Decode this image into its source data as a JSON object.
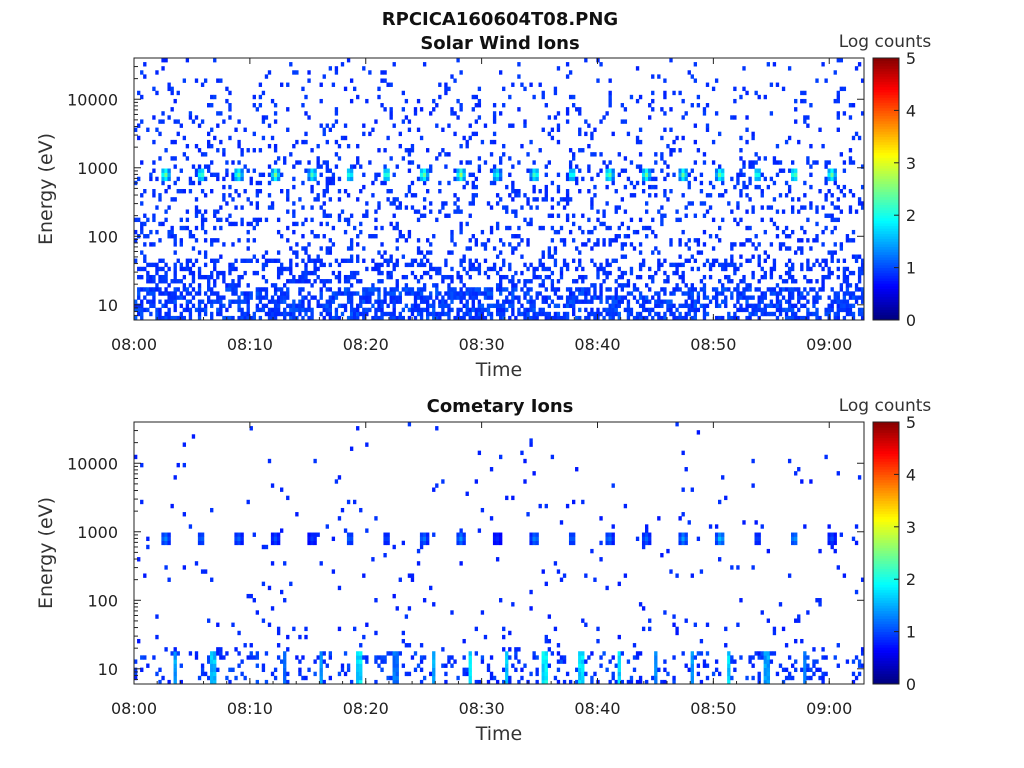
{
  "figure_title": "RPCICA160604T08.PNG",
  "chart_data": [
    {
      "type": "heatmap",
      "title": "Solar Wind Ions",
      "xlabel": "Time",
      "ylabel": "Energy (eV)",
      "x_range_minutes": [
        0,
        63
      ],
      "y_scale": "log",
      "ylim": [
        6,
        40000
      ],
      "xticks": [
        "08:00",
        "08:10",
        "08:20",
        "08:30",
        "08:40",
        "08:50",
        "09:00"
      ],
      "xtick_minutes": [
        0,
        10,
        20,
        30,
        40,
        50,
        60
      ],
      "yticks": [
        "10",
        "100",
        "1000",
        "10000"
      ],
      "ytick_values": [
        10,
        100,
        1000,
        10000
      ],
      "colorbar": {
        "label": "Log counts",
        "range": [
          0,
          5
        ],
        "ticks": [
          "0",
          "1",
          "2",
          "3",
          "4",
          "5"
        ]
      },
      "peak_band": {
        "energy_eV": 800,
        "times_min": [
          2.7,
          5.8,
          9.0,
          12.2,
          15.4,
          18.6,
          21.8,
          25.0,
          28.2,
          31.3,
          34.6,
          37.8,
          41.0,
          44.2,
          47.4,
          50.6,
          53.8,
          57.0,
          60.2
        ],
        "peak_log_counts": [
          2.4,
          2.2,
          2.3,
          2.3,
          2.1,
          2.0,
          2.2,
          2.4,
          2.5,
          1.9,
          2.2,
          2.0,
          2.4,
          2.3,
          2.2,
          2.4,
          2.1,
          2.3,
          2.3
        ]
      },
      "background": {
        "scatter_density": 0.55,
        "low_energy_density": 0.75,
        "typical_log_counts": 0.3
      }
    },
    {
      "type": "heatmap",
      "title": "Cometary Ions",
      "xlabel": "Time",
      "ylabel": "Energy (eV)",
      "x_range_minutes": [
        0,
        63
      ],
      "y_scale": "log",
      "ylim": [
        6,
        40000
      ],
      "xticks": [
        "08:00",
        "08:10",
        "08:20",
        "08:30",
        "08:40",
        "08:50",
        "09:00"
      ],
      "xtick_minutes": [
        0,
        10,
        20,
        30,
        40,
        50,
        60
      ],
      "yticks": [
        "10",
        "100",
        "1000",
        "10000"
      ],
      "ytick_values": [
        10,
        100,
        1000,
        10000
      ],
      "colorbar": {
        "label": "Log counts",
        "range": [
          0,
          5
        ],
        "ticks": [
          "0",
          "1",
          "2",
          "3",
          "4",
          "5"
        ]
      },
      "peak_band": {
        "energy_eV": 800,
        "times_min": [
          2.7,
          5.8,
          9.0,
          12.2,
          15.4,
          18.6,
          21.8,
          25.0,
          28.2,
          31.3,
          34.6,
          37.8,
          41.0,
          44.2,
          47.4,
          50.6,
          53.8,
          57.0,
          60.2
        ],
        "peak_log_counts": [
          1.0,
          0.8,
          0.8,
          0.6,
          0.5,
          0.8,
          0.6,
          0.9,
          1.0,
          0.4,
          1.0,
          0.8,
          0.9,
          0.8,
          1.1,
          1.4,
          0.6,
          1.1,
          0.6
        ]
      },
      "low_energy_streaks": {
        "times_min": [
          3.5,
          6.8,
          13.0,
          16.2,
          19.4,
          22.6,
          25.8,
          29.0,
          32.2,
          35.4,
          38.6,
          41.8,
          45.0,
          48.2,
          51.4,
          54.6,
          57.8
        ],
        "log_counts": [
          1.2,
          1.4,
          0.8,
          1.1,
          1.6,
          0.9,
          1.2,
          1.5,
          1.4,
          1.7,
          1.6,
          1.6,
          1.0,
          1.1,
          1.5,
          1.2,
          0.9
        ]
      },
      "background": {
        "scatter_density": 0.08,
        "low_energy_density": 0.3,
        "typical_log_counts": 0.25
      }
    }
  ]
}
